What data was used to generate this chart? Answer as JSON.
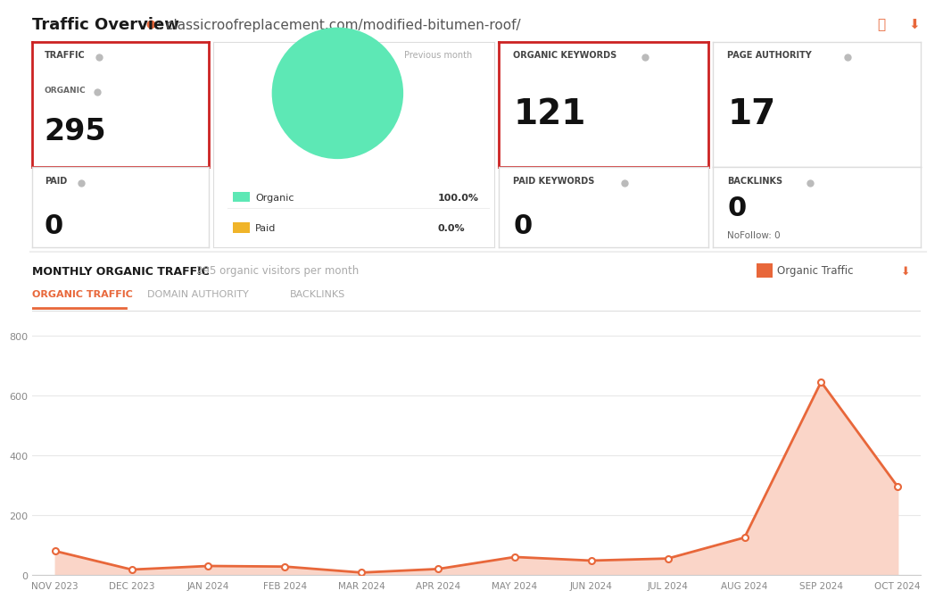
{
  "title": "Traffic Overview",
  "subtitle": ": classicroofreplacement.com/modified-bitumen-roof/",
  "traffic_organic": 295,
  "traffic_paid": 0,
  "organic_keywords": 121,
  "page_authority": 17,
  "paid_keywords": 0,
  "backlinks": 0,
  "nofollow": 0,
  "pie_organic_color": "#5de8b5",
  "pie_paid_color": "#f0b429",
  "line_color": "#e8673a",
  "fill_color": "#fad5c8",
  "bg_color": "#ffffff",
  "grid_color": "#e8e8e8",
  "months": [
    "NOV 2023",
    "DEC 2023",
    "JAN 2024",
    "FEB 2024",
    "MAR 2024",
    "APR 2024",
    "MAY 2024",
    "JUN 2024",
    "JUL 2024",
    "AUG 2024",
    "SEP 2024",
    "OCT 2024"
  ],
  "values": [
    80,
    18,
    30,
    28,
    8,
    20,
    60,
    48,
    55,
    125,
    645,
    295
  ],
  "yticks": [
    0,
    200,
    400,
    600,
    800
  ],
  "ylim": [
    0,
    880
  ],
  "chart_title": "MONTHLY ORGANIC TRAFFIC",
  "chart_subtitle": "295 organic visitors per month",
  "tab_active": "ORGANIC TRAFFIC",
  "tab_inactive1": "DOMAIN AUTHORITY",
  "tab_inactive2": "BACKLINKS",
  "red_border_color": "#cc2222",
  "gray_border_color": "#cccccc",
  "dark_text": "#111111",
  "label_text": "#555555",
  "gray_text": "#888888",
  "small_dot_color": "#bbbbbb"
}
